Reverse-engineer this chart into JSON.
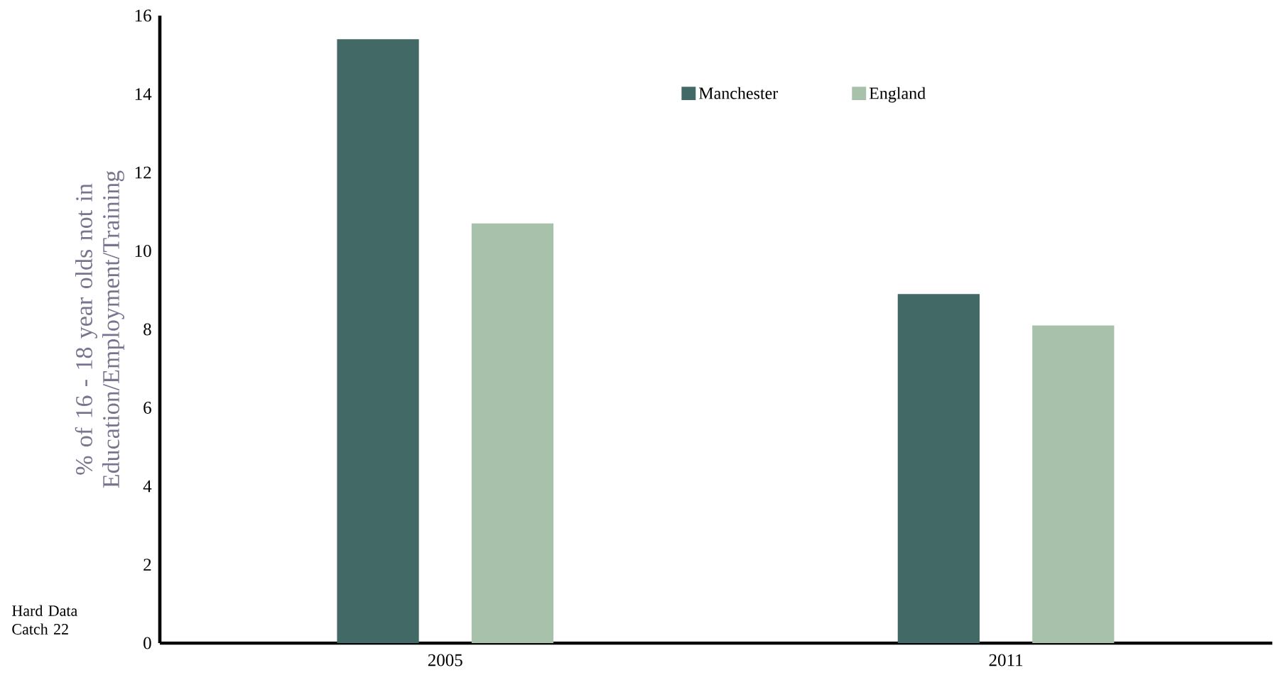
{
  "chart_data": {
    "type": "bar",
    "ylabel": "% of 16 - 18 year olds not in Education/Employment/Training",
    "categories": [
      "2005",
      "2011"
    ],
    "series": [
      {
        "name": "Manchester",
        "color": "#436967",
        "values": [
          15.4,
          8.9
        ]
      },
      {
        "name": "England",
        "color": "#a8c1aa",
        "values": [
          10.7,
          8.1
        ]
      }
    ],
    "ylim": [
      0,
      16
    ],
    "yticks": [
      0,
      2,
      4,
      6,
      8,
      10,
      12,
      14,
      16
    ],
    "legend": "top",
    "annotations": [
      "Hard Data Catch 22"
    ]
  }
}
